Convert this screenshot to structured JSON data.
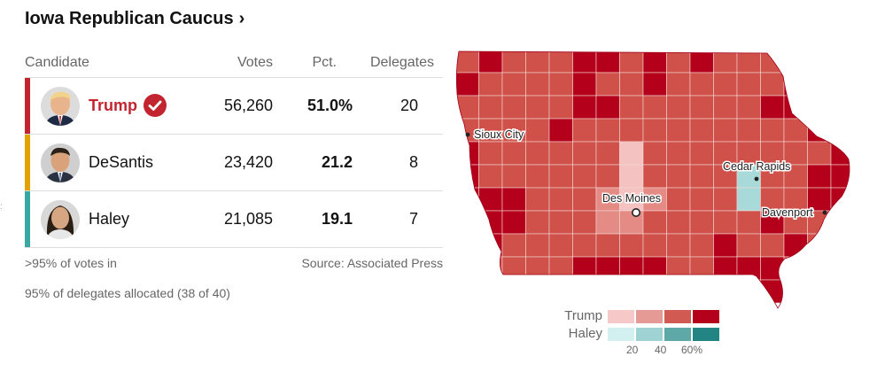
{
  "header": {
    "title": "Iowa Republican Caucus",
    "chevron": "›"
  },
  "table": {
    "columns": [
      "Candidate",
      "Votes",
      "Pct.",
      "Delegates"
    ],
    "rows": [
      {
        "name": "Trump",
        "votes": "56,260",
        "pct": "51.0%",
        "delegates": "20",
        "color": "#c2252f",
        "winner": true,
        "photo": "trump-photo"
      },
      {
        "name": "DeSantis",
        "votes": "23,420",
        "pct": "21.2",
        "delegates": "8",
        "color": "#e2a300",
        "winner": false,
        "photo": "desantis-photo"
      },
      {
        "name": "Haley",
        "votes": "21,085",
        "pct": "19.1",
        "delegates": "7",
        "color": "#3aa8a2",
        "winner": false,
        "photo": "haley-photo"
      }
    ]
  },
  "footer": {
    "reporting": ">95% of votes in",
    "source": "Source: Associated Press",
    "delegates_allocated": "95% of delegates allocated (38 of 40)"
  },
  "map": {
    "cities": [
      "Sioux City",
      "Cedar Rapids",
      "Des Moines",
      "Davenport"
    ],
    "colors": {
      "trump_dark": "#b5001b",
      "trump_mid": "#d0504a",
      "trump_light": "#e48b86",
      "trump_pale": "#f4c2c0",
      "haley": "#a8dada"
    }
  },
  "legend": {
    "rows": [
      {
        "name": "Trump",
        "colors": [
          "#f7c8c8",
          "#e69a96",
          "#d15a52",
          "#b5001b"
        ]
      },
      {
        "name": "Haley",
        "colors": [
          "#d3f0f0",
          "#9fd2d2",
          "#5ea8a8",
          "#238583"
        ]
      }
    ],
    "ticks": [
      "20",
      "40",
      "60%"
    ]
  }
}
